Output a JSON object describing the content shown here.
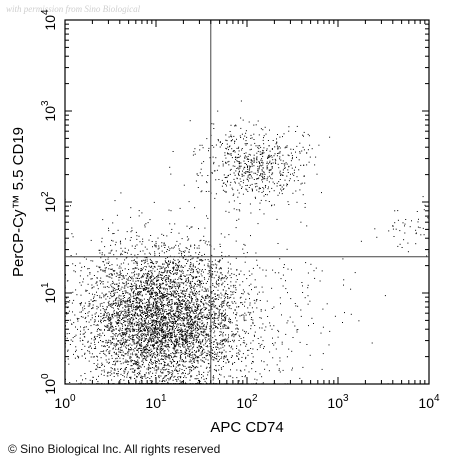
{
  "watermark": "with permission from Sino Biological",
  "copyright": "© Sino Biological Inc. All rights reserved",
  "chart_data": {
    "type": "scatter",
    "title": "",
    "xlabel": "APC CD74",
    "ylabel": "PerCP-Cy™ 5.5 CD19",
    "xscale": "log",
    "yscale": "log",
    "xlim": [
      1,
      10000
    ],
    "ylim": [
      1,
      10000
    ],
    "x_ticks": [
      {
        "value": 1,
        "base": "10",
        "exp": "0"
      },
      {
        "value": 10,
        "base": "10",
        "exp": "1"
      },
      {
        "value": 100,
        "base": "10",
        "exp": "2"
      },
      {
        "value": 1000,
        "base": "10",
        "exp": "3"
      },
      {
        "value": 10000,
        "base": "10",
        "exp": "4"
      }
    ],
    "y_ticks": [
      {
        "value": 1,
        "base": "10",
        "exp": "0"
      },
      {
        "value": 10,
        "base": "10",
        "exp": "1"
      },
      {
        "value": 100,
        "base": "10",
        "exp": "2"
      },
      {
        "value": 1000,
        "base": "10",
        "exp": "3"
      },
      {
        "value": 10000,
        "base": "10",
        "exp": "4"
      }
    ],
    "gates": {
      "x": 40,
      "y": 25
    },
    "populations": [
      {
        "x_center": 12,
        "y_center": 5,
        "x_spread_decades": 0.45,
        "y_spread_decades": 0.42,
        "count": 5200
      },
      {
        "x_center": 120,
        "y_center": 250,
        "x_spread_decades": 0.3,
        "y_spread_decades": 0.22,
        "count": 650
      },
      {
        "x_center": 6000,
        "y_center": 50,
        "x_spread_decades": 0.15,
        "y_spread_decades": 0.15,
        "count": 45
      },
      {
        "x_center": 200,
        "y_center": 5,
        "x_spread_decades": 0.5,
        "y_spread_decades": 0.45,
        "count": 180
      }
    ],
    "grid": false,
    "legend": "none",
    "marker_color": "#000000"
  }
}
